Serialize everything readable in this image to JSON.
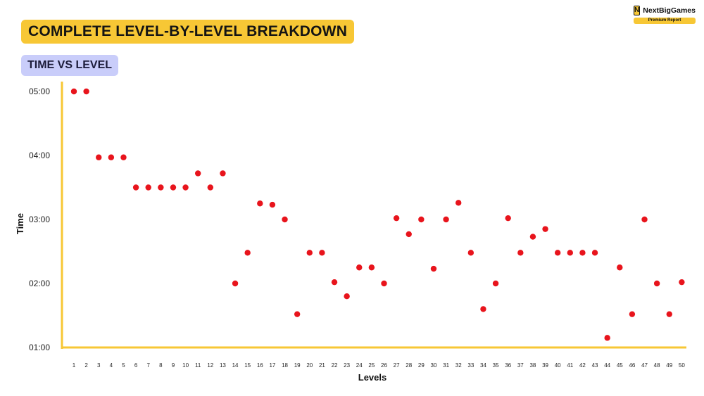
{
  "header": {
    "title": "COMPLETE LEVEL-BY-LEVEL BREAKDOWN",
    "subtitle": "TIME VS LEVEL"
  },
  "brand": {
    "name": "NextBigGames",
    "tag": "Premium Report",
    "mark": "N"
  },
  "colors": {
    "accent": "#f7c735",
    "subtitle_bg": "#c9cdfa",
    "point": "#e8141c",
    "stem_top": "#f07a22",
    "stem_bottom": "#8fe04a",
    "axis": "#f7c735"
  },
  "chart_data": {
    "type": "scatter",
    "style": "lollipop",
    "xlabel": "Levels",
    "ylabel": "Time",
    "y_tick_labels": [
      "01:00",
      "02:00",
      "03:00",
      "04:00",
      "05:00"
    ],
    "ylim_minutes": [
      1,
      5
    ],
    "grid": false,
    "x": [
      1,
      2,
      3,
      4,
      5,
      6,
      7,
      8,
      9,
      10,
      11,
      12,
      13,
      14,
      15,
      16,
      17,
      18,
      19,
      20,
      21,
      22,
      23,
      24,
      25,
      26,
      27,
      28,
      29,
      30,
      31,
      32,
      33,
      34,
      35,
      36,
      37,
      38,
      39,
      40,
      41,
      42,
      43,
      44,
      45,
      46,
      47,
      48,
      49,
      50
    ],
    "values_minutes": [
      5.0,
      5.0,
      3.97,
      3.97,
      3.97,
      3.5,
      3.5,
      3.5,
      3.5,
      3.5,
      3.72,
      3.5,
      3.72,
      2.0,
      2.48,
      3.25,
      3.23,
      3.0,
      1.52,
      2.48,
      2.48,
      2.02,
      1.8,
      2.25,
      2.25,
      2.0,
      3.02,
      2.77,
      3.0,
      2.23,
      3.0,
      3.26,
      2.48,
      1.6,
      2.0,
      3.02,
      2.48,
      2.73,
      2.85,
      2.48,
      2.48,
      2.48,
      2.48,
      1.15,
      2.25,
      1.52,
      3.0,
      2.0,
      1.52,
      2.02
    ]
  }
}
